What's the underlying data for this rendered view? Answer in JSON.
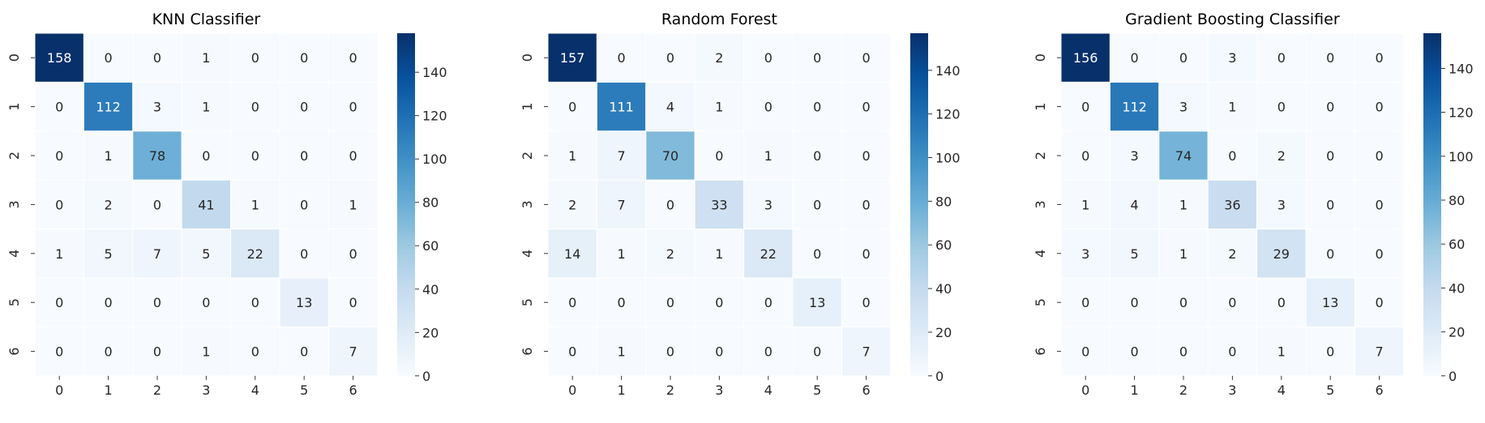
{
  "chart_data": [
    {
      "type": "heatmap",
      "title": "KNN Classifier",
      "xlabel": "",
      "ylabel": "",
      "x_categories": [
        "0",
        "1",
        "2",
        "3",
        "4",
        "5",
        "6"
      ],
      "y_categories": [
        "0",
        "1",
        "2",
        "3",
        "4",
        "5",
        "6"
      ],
      "values": [
        [
          158,
          0,
          0,
          1,
          0,
          0,
          0
        ],
        [
          0,
          112,
          3,
          1,
          0,
          0,
          0
        ],
        [
          0,
          1,
          78,
          0,
          0,
          0,
          0
        ],
        [
          0,
          2,
          0,
          41,
          1,
          0,
          1
        ],
        [
          1,
          5,
          7,
          5,
          22,
          0,
          0
        ],
        [
          0,
          0,
          0,
          0,
          0,
          13,
          0
        ],
        [
          0,
          0,
          0,
          1,
          0,
          0,
          7
        ]
      ],
      "colorbar": {
        "min": 0,
        "max": 158,
        "ticks": [
          0,
          20,
          40,
          60,
          80,
          100,
          120,
          140
        ]
      },
      "colormap": "Blues"
    },
    {
      "type": "heatmap",
      "title": "Random Forest",
      "xlabel": "",
      "ylabel": "",
      "x_categories": [
        "0",
        "1",
        "2",
        "3",
        "4",
        "5",
        "6"
      ],
      "y_categories": [
        "0",
        "1",
        "2",
        "3",
        "4",
        "5",
        "6"
      ],
      "values": [
        [
          157,
          0,
          0,
          2,
          0,
          0,
          0
        ],
        [
          0,
          111,
          4,
          1,
          0,
          0,
          0
        ],
        [
          1,
          7,
          70,
          0,
          1,
          0,
          0
        ],
        [
          2,
          7,
          0,
          33,
          3,
          0,
          0
        ],
        [
          14,
          1,
          2,
          1,
          22,
          0,
          0
        ],
        [
          0,
          0,
          0,
          0,
          0,
          13,
          0
        ],
        [
          0,
          1,
          0,
          0,
          0,
          0,
          7
        ]
      ],
      "colorbar": {
        "min": 0,
        "max": 157,
        "ticks": [
          0,
          20,
          40,
          60,
          80,
          100,
          120,
          140
        ]
      },
      "colormap": "Blues"
    },
    {
      "type": "heatmap",
      "title": "Gradient Boosting Classifier",
      "xlabel": "",
      "ylabel": "",
      "x_categories": [
        "0",
        "1",
        "2",
        "3",
        "4",
        "5",
        "6"
      ],
      "y_categories": [
        "0",
        "1",
        "2",
        "3",
        "4",
        "5",
        "6"
      ],
      "values": [
        [
          156,
          0,
          0,
          3,
          0,
          0,
          0
        ],
        [
          0,
          112,
          3,
          1,
          0,
          0,
          0
        ],
        [
          0,
          3,
          74,
          0,
          2,
          0,
          0
        ],
        [
          1,
          4,
          1,
          36,
          3,
          0,
          0
        ],
        [
          3,
          5,
          1,
          2,
          29,
          0,
          0
        ],
        [
          0,
          0,
          0,
          0,
          0,
          13,
          0
        ],
        [
          0,
          0,
          0,
          0,
          1,
          0,
          7
        ]
      ],
      "colorbar": {
        "min": 0,
        "max": 156,
        "ticks": [
          0,
          20,
          40,
          60,
          80,
          100,
          120,
          140
        ]
      },
      "colormap": "Blues"
    }
  ]
}
